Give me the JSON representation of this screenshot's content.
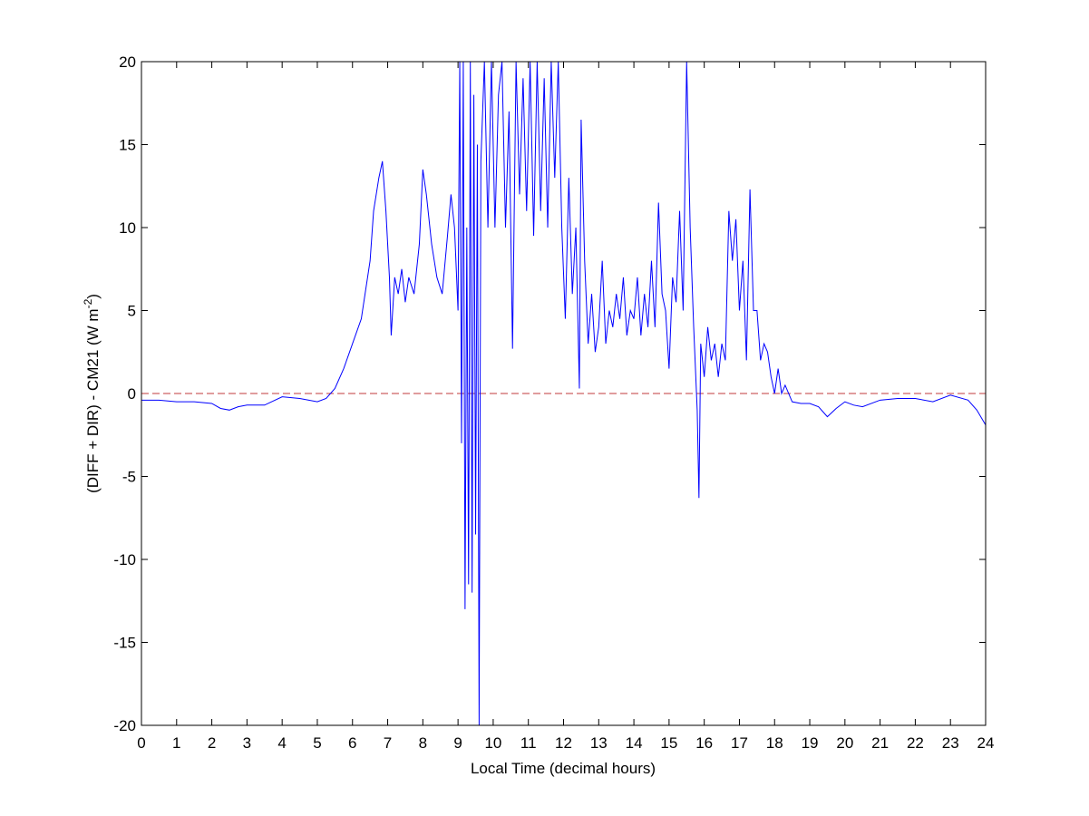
{
  "chart_data": {
    "type": "line",
    "xlabel": "Local Time (decimal hours)",
    "ylabel_parts": [
      "(DIFF + DIR) - CM21 (W m",
      "-2",
      ")"
    ],
    "xlim": [
      0,
      24
    ],
    "xticks": [
      0,
      1,
      2,
      3,
      4,
      5,
      6,
      7,
      8,
      9,
      10,
      11,
      12,
      13,
      14,
      15,
      16,
      17,
      18,
      19,
      20,
      21,
      22,
      23,
      24
    ],
    "ylim": [
      -20,
      20
    ],
    "yticks": [
      -20,
      -15,
      -10,
      -5,
      0,
      5,
      10,
      15,
      20
    ],
    "reference_line": {
      "value": 0,
      "color": "#c0393b",
      "dash": true
    },
    "x": [
      0,
      0.5,
      1,
      1.5,
      2,
      2.25,
      2.5,
      2.75,
      3,
      3.5,
      4,
      4.5,
      5,
      5.25,
      5.5,
      5.75,
      6,
      6.25,
      6.5,
      6.6,
      6.75,
      6.85,
      6.95,
      7.05,
      7.1,
      7.2,
      7.3,
      7.4,
      7.5,
      7.6,
      7.75,
      7.9,
      8.0,
      8.1,
      8.25,
      8.4,
      8.55,
      8.7,
      8.8,
      8.9,
      9.0,
      9.05,
      9.1,
      9.15,
      9.2,
      9.25,
      9.3,
      9.35,
      9.4,
      9.45,
      9.5,
      9.55,
      9.6,
      9.65,
      9.75,
      9.85,
      9.95,
      10.05,
      10.15,
      10.25,
      10.35,
      10.45,
      10.55,
      10.65,
      10.75,
      10.85,
      10.95,
      11.05,
      11.15,
      11.25,
      11.35,
      11.45,
      11.55,
      11.65,
      11.75,
      11.85,
      11.95,
      12.05,
      12.15,
      12.25,
      12.35,
      12.45,
      12.5,
      12.6,
      12.7,
      12.8,
      12.9,
      13.0,
      13.1,
      13.2,
      13.3,
      13.4,
      13.5,
      13.6,
      13.7,
      13.8,
      13.9,
      14.0,
      14.1,
      14.2,
      14.3,
      14.4,
      14.5,
      14.6,
      14.7,
      14.8,
      14.9,
      15.0,
      15.1,
      15.2,
      15.3,
      15.4,
      15.5,
      15.6,
      15.7,
      15.8,
      15.85,
      15.9,
      16.0,
      16.1,
      16.2,
      16.3,
      16.4,
      16.5,
      16.6,
      16.7,
      16.8,
      16.9,
      17.0,
      17.1,
      17.2,
      17.3,
      17.4,
      17.5,
      17.6,
      17.7,
      17.8,
      17.9,
      18.0,
      18.1,
      18.2,
      18.3,
      18.5,
      18.75,
      19.0,
      19.25,
      19.5,
      19.75,
      20.0,
      20.25,
      20.5,
      21.0,
      21.5,
      22.0,
      22.5,
      23.0,
      23.5,
      23.75,
      24.0
    ],
    "series": [
      {
        "color": "#0000ff",
        "values": [
          -0.4,
          -0.4,
          -0.5,
          -0.5,
          -0.6,
          -0.9,
          -1.0,
          -0.8,
          -0.7,
          -0.7,
          -0.2,
          -0.3,
          -0.5,
          -0.3,
          0.3,
          1.5,
          3.0,
          4.5,
          8,
          11,
          13,
          14,
          11,
          7,
          3.5,
          7,
          6,
          7.5,
          5.5,
          7,
          6,
          9,
          13.5,
          12,
          9,
          7,
          6,
          9.5,
          12,
          10,
          5,
          20,
          -3,
          20,
          -13,
          10,
          -11.5,
          20,
          -12,
          18,
          -8.5,
          15,
          -20,
          14,
          20,
          10,
          20,
          10,
          18,
          20,
          10,
          17,
          2.7,
          20,
          12,
          19,
          11,
          20,
          9.5,
          20,
          11,
          19,
          10,
          20,
          13,
          20,
          10,
          4.5,
          13,
          6,
          10,
          0.3,
          16.5,
          8,
          3,
          6,
          2.5,
          4,
          8,
          3,
          5,
          4,
          6,
          4.5,
          7,
          3.5,
          5,
          4.5,
          7,
          3.5,
          6,
          4,
          8,
          4,
          11.5,
          6,
          5,
          1.5,
          7,
          5.5,
          11,
          5,
          20,
          10,
          4,
          -1,
          -6.3,
          3,
          1,
          4,
          2,
          3,
          1,
          3,
          2,
          11,
          8,
          10.5,
          5,
          8,
          2,
          12.3,
          5,
          5,
          2,
          3,
          2.5,
          1,
          0,
          1.5,
          0,
          0.5,
          -0.5,
          -0.6,
          -0.6,
          -0.8,
          -1.4,
          -0.9,
          -0.5,
          -0.7,
          -0.8,
          -0.4,
          -0.3,
          -0.3,
          -0.5,
          -0.1,
          -0.4,
          -1.0,
          -1.9
        ]
      }
    ]
  }
}
